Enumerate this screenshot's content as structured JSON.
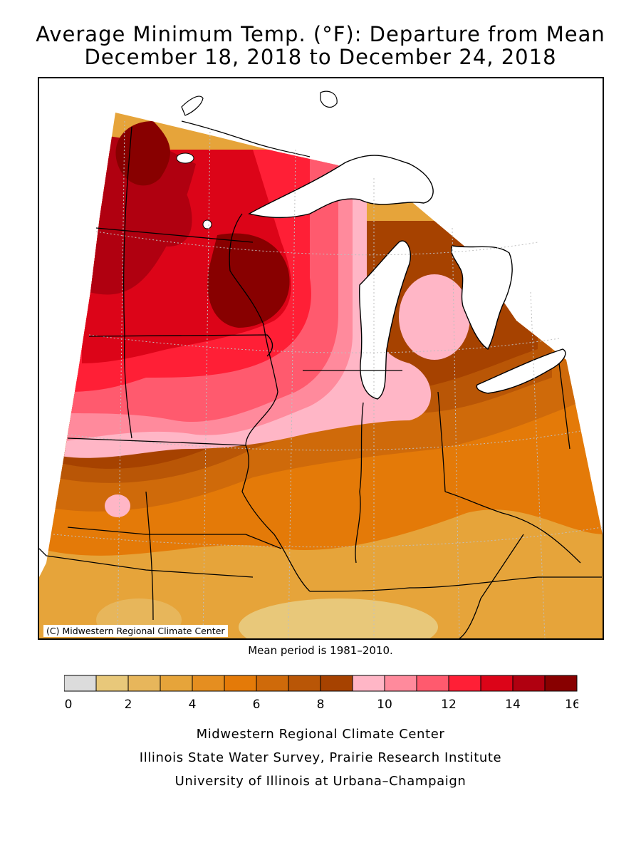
{
  "title": {
    "line1": "Average Minimum Temp. (°F): Departure from Mean",
    "line2": "December 18, 2018 to December 24, 2018"
  },
  "map": {
    "copyright": "(C) Midwestern Regional Climate Center",
    "region": "Midwest United States",
    "water_color": "#ffffff",
    "state_line_color": "#000000",
    "grid_line_color": "#bfbfbf"
  },
  "note": "Mean period is 1981–2010.",
  "legend": {
    "tick_labels": [
      "0",
      "2",
      "4",
      "6",
      "8",
      "10",
      "12",
      "14",
      "16"
    ],
    "bins": [
      {
        "from": 0,
        "to": 1,
        "color": "#dcdcdc"
      },
      {
        "from": 1,
        "to": 2,
        "color": "#e8c87a"
      },
      {
        "from": 2,
        "to": 3,
        "color": "#e7b65b"
      },
      {
        "from": 3,
        "to": 4,
        "color": "#e6a43a"
      },
      {
        "from": 4,
        "to": 5,
        "color": "#e58e20"
      },
      {
        "from": 5,
        "to": 6,
        "color": "#e47a08"
      },
      {
        "from": 6,
        "to": 7,
        "color": "#cf6a0a"
      },
      {
        "from": 7,
        "to": 8,
        "color": "#b95606"
      },
      {
        "from": 8,
        "to": 9,
        "color": "#a64200"
      },
      {
        "from": 9,
        "to": 10,
        "color": "#ffb6c6"
      },
      {
        "from": 10,
        "to": 11,
        "color": "#ff8a9c"
      },
      {
        "from": 11,
        "to": 12,
        "color": "#ff5a6e"
      },
      {
        "from": 12,
        "to": 13,
        "color": "#ff1f36"
      },
      {
        "from": 13,
        "to": 14,
        "color": "#dc0418"
      },
      {
        "from": 14,
        "to": 15,
        "color": "#b00010"
      },
      {
        "from": 15,
        "to": 16,
        "color": "#880000"
      }
    ]
  },
  "credits": [
    "Midwestern Regional Climate Center",
    "Illinois State Water Survey, Prairie Research Institute",
    "University of Illinois at Urbana–Champaign"
  ]
}
